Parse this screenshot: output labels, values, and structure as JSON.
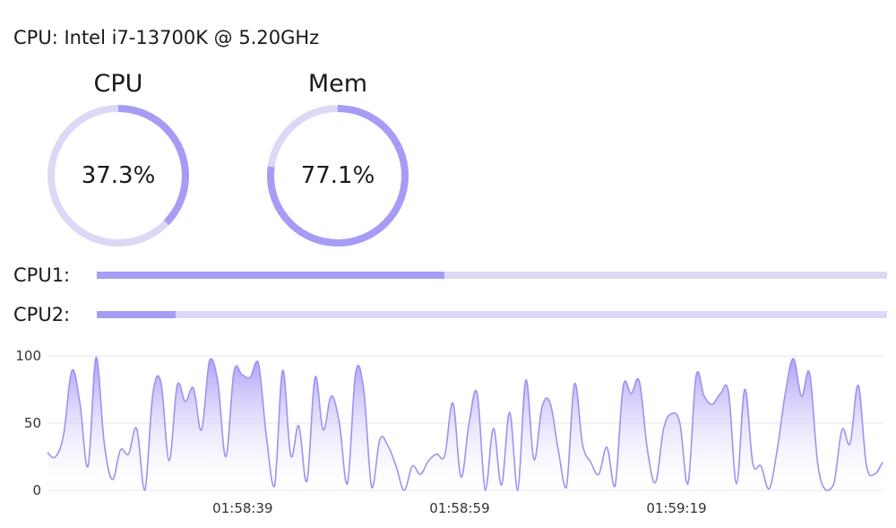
{
  "header": {
    "cpu_model": "CPU: Intel i7-13700K @ 5.20GHz"
  },
  "gauges": [
    {
      "title": "CPU",
      "value_text": "37.3%",
      "percent": 37.3
    },
    {
      "title": "Mem",
      "value_text": "77.1%",
      "percent": 77.1
    }
  ],
  "cores": [
    {
      "label": "CPU1:",
      "percent": 44
    },
    {
      "label": "CPU2:",
      "percent": 10
    }
  ],
  "colors": {
    "accent": "#a69cf5",
    "track": "#dcd9f6",
    "line": "#9d93ef",
    "area_top": "#a69cf5",
    "area_bottom": "#ffffff",
    "grid": "#e6e6ee"
  },
  "chart_data": {
    "type": "area",
    "ylim": [
      0,
      100
    ],
    "y_ticks": [
      "0",
      "50",
      "100"
    ],
    "x_ticks": [
      {
        "label": "01:58:39",
        "index": 9
      },
      {
        "label": "01:58:59",
        "index": 19
      },
      {
        "label": "01:59:19",
        "index": 29
      }
    ],
    "grid": true,
    "series": [
      {
        "values": [
          28,
          25,
          42,
          89,
          65,
          18,
          99,
          35,
          8,
          30,
          27,
          46,
          0,
          72,
          80,
          22,
          78,
          66,
          76,
          45,
          97,
          81,
          25,
          88,
          86,
          84,
          95,
          40,
          3,
          89,
          26,
          48,
          7,
          84,
          45,
          70,
          50,
          5,
          87,
          75,
          2,
          38,
          33,
          18,
          0,
          18,
          12,
          22,
          27,
          26,
          65,
          10,
          50,
          72,
          0,
          46,
          4,
          58,
          0,
          82,
          23,
          62,
          65,
          30,
          2,
          79,
          34,
          21,
          12,
          32,
          3,
          77,
          72,
          81,
          30,
          6,
          46,
          57,
          50,
          5,
          85,
          70,
          64,
          72,
          73,
          5,
          75,
          20,
          18,
          1,
          30,
          72,
          98,
          70,
          87,
          20,
          0,
          5,
          45,
          35,
          78,
          19,
          12,
          21
        ]
      }
    ]
  }
}
